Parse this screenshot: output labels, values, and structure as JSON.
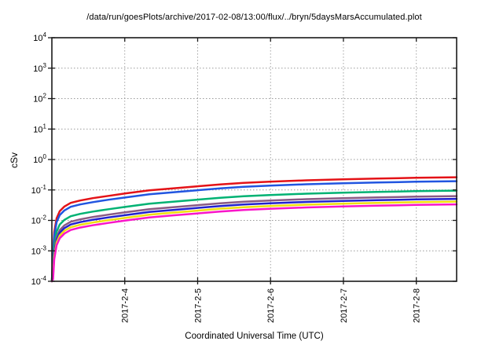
{
  "chart": {
    "title": "/data/run/goesPlots/archive/2017-02-08/13:00/flux/../bryn/5daysMarsAccumulated.plot",
    "xlabel": "Coordinated Universal Time (UTC)",
    "ylabel": "cSv"
  },
  "chart_data": {
    "type": "line",
    "title": "/data/run/goesPlots/archive/2017-02-08/13:00/flux/../bryn/5daysMarsAccumulated.plot",
    "xlabel": "Coordinated Universal Time (UTC)",
    "ylabel": "cSv",
    "y_scale": "log10",
    "ylim": [
      0.0001,
      10000.0
    ],
    "y_tick_exponents": [
      4,
      3,
      2,
      1,
      0,
      -1,
      -2,
      -3,
      -4
    ],
    "grid": true,
    "legend": false,
    "x_axis": {
      "unit": "days since 2017-02-03 00:00 UTC",
      "range": [
        0,
        5.553
      ],
      "ticks": [
        {
          "day": 1,
          "label": "2017-2-4"
        },
        {
          "day": 2,
          "label": "2017-2-5"
        },
        {
          "day": 3,
          "label": "2017-2-6"
        },
        {
          "day": 4,
          "label": "2017-2-7"
        },
        {
          "day": 5,
          "label": "2017-2-8"
        }
      ]
    },
    "x_days": [
      0,
      0.016,
      0.032,
      0.065,
      0.108,
      0.172,
      0.259,
      0.388,
      0.561,
      0.776,
      1.013,
      1.337,
      1.66,
      1.984,
      2.307,
      2.631,
      2.987,
      3.493,
      3.989,
      4.463,
      4.992,
      5.553
    ],
    "series": [
      {
        "name": "series-red",
        "color": "#e41217",
        "values": [
          0.0001,
          0.00091,
          0.0041,
          0.0117,
          0.02,
          0.0287,
          0.0376,
          0.045,
          0.0536,
          0.064,
          0.077,
          0.097,
          0.113,
          0.131,
          0.152,
          0.171,
          0.187,
          0.207,
          0.223,
          0.236,
          0.25,
          0.261
        ]
      },
      {
        "name": "series-blue",
        "color": "#2155e0",
        "values": [
          0.0001,
          0.00068,
          0.00305,
          0.0087,
          0.0149,
          0.0213,
          0.0279,
          0.0334,
          0.0398,
          0.0476,
          0.0572,
          0.0721,
          0.084,
          0.0973,
          0.113,
          0.127,
          0.139,
          0.154,
          0.166,
          0.175,
          0.186,
          0.194
        ]
      },
      {
        "name": "series-green",
        "color": "#00b273",
        "values": [
          0.0001,
          0.00033,
          0.00149,
          0.00426,
          0.00728,
          0.0104,
          0.0137,
          0.0164,
          0.0195,
          0.0233,
          0.028,
          0.0353,
          0.0411,
          0.0477,
          0.0553,
          0.0622,
          0.0681,
          0.0753,
          0.0812,
          0.0859,
          0.091,
          0.095
        ]
      },
      {
        "name": "series-purple",
        "color": "#8a5a84",
        "values": [
          0.0001,
          0.00022,
          0.00098,
          0.00281,
          0.0048,
          0.00689,
          0.00902,
          0.0108,
          0.0129,
          0.0154,
          0.0185,
          0.0233,
          0.0271,
          0.0314,
          0.0365,
          0.041,
          0.0449,
          0.0497,
          0.0535,
          0.0566,
          0.06,
          0.0626
        ]
      },
      {
        "name": "series-navy",
        "color": "#2222cf",
        "values": [
          0.0001,
          0.00018,
          0.0008,
          0.00228,
          0.0039,
          0.0056,
          0.00733,
          0.00878,
          0.0105,
          0.0125,
          0.015,
          0.0189,
          0.022,
          0.0255,
          0.0296,
          0.0333,
          0.0365,
          0.0404,
          0.0435,
          0.046,
          0.0488,
          0.0509
        ]
      },
      {
        "name": "series-yellow",
        "color": "#efdf0e",
        "values": [
          0.0001,
          0.000145,
          0.00065,
          0.00186,
          0.00318,
          0.00456,
          0.00598,
          0.00716,
          0.00852,
          0.0102,
          0.0122,
          0.0154,
          0.018,
          0.0208,
          0.0242,
          0.0272,
          0.0297,
          0.0329,
          0.0355,
          0.0375,
          0.0398,
          0.0415
        ]
      },
      {
        "name": "series-magenta",
        "color": "#f915c9",
        "values": [
          0.0001,
          0.000117,
          0.00053,
          0.00151,
          0.00258,
          0.0037,
          0.00485,
          0.00581,
          0.00691,
          0.00826,
          0.00993,
          0.0125,
          0.0146,
          0.0169,
          0.0196,
          0.0221,
          0.0241,
          0.0267,
          0.0288,
          0.0304,
          0.0323,
          0.0337
        ]
      }
    ],
    "style": {
      "grid_color": "#9a9a9a",
      "border_color": "#1a1a1a",
      "background": "#ffffff"
    }
  }
}
